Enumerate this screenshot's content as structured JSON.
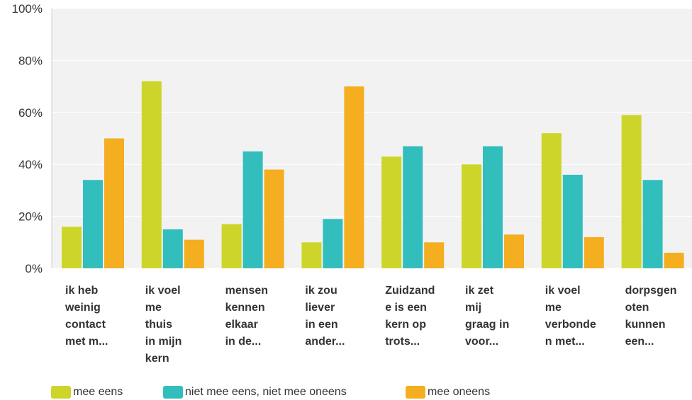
{
  "chart_data": {
    "type": "bar",
    "categories": [
      [
        "ik heb",
        "weinig",
        "contact",
        "met m..."
      ],
      [
        "ik voel",
        "me",
        "thuis",
        "in mijn",
        "kern"
      ],
      [
        "mensen",
        "kennen",
        "elkaar",
        "in de..."
      ],
      [
        "ik zou",
        "liever",
        "in een",
        "ander..."
      ],
      [
        "Zuidzand",
        "e is een",
        "kern op",
        "trots..."
      ],
      [
        "ik zet",
        "mij",
        "graag in",
        "voor..."
      ],
      [
        "ik voel",
        "me",
        "verbonde",
        "n met..."
      ],
      [
        "dorpsgen",
        "oten",
        "kunnen",
        "een..."
      ]
    ],
    "series": [
      {
        "name": "mee eens",
        "color": "#cdd52a",
        "values": [
          16,
          72,
          17,
          10,
          43,
          40,
          52,
          59
        ]
      },
      {
        "name": "niet mee eens, niet mee oneens",
        "color": "#33bebe",
        "values": [
          34,
          15,
          45,
          19,
          47,
          47,
          36,
          34
        ]
      },
      {
        "name": "mee oneens",
        "color": "#f5ae1f",
        "values": [
          50,
          11,
          38,
          70,
          10,
          13,
          12,
          6
        ]
      }
    ],
    "yticks": [
      "0%",
      "20%",
      "40%",
      "60%",
      "80%",
      "100%"
    ],
    "ylim": [
      0,
      100
    ],
    "grid": true,
    "legend_position": "bottom"
  }
}
